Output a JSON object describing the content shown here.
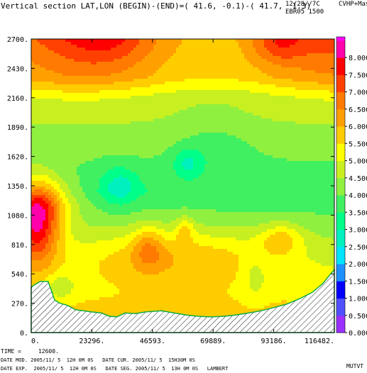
{
  "header": {
    "title": "Vertical section LAT,LON (BEGIN)-(END)=( 41.6, -0.1)-( 41.7,  1.3)",
    "top_right_1": "12/28//7C",
    "top_right_2": "EBR05 1500",
    "units": "CVHP+Mas"
  },
  "footer": {
    "time": "TIME =     12600.",
    "line1": "DATE MOD. 2005/11/ 5  12H 0M 0S   DATE CUR. 2005/11/ 5  15H30M 0S",
    "line2": "DATE EXP.  2005/11/ 5  12H 0M 0S   DATE SEG. 2005/11/ 5  13H 0M 0S   LAMBERT",
    "tag": "MUTVT"
  },
  "chart_data": {
    "type": "contour",
    "x_ticks": [
      "0.",
      "23296.",
      "46593.",
      "69889.",
      "93186.",
      "116482."
    ],
    "y_ticks": [
      "0.",
      "270.",
      "540.",
      "810.",
      "1080.",
      "1350.",
      "1620.",
      "1890.",
      "2160.",
      "2430.",
      "2700."
    ],
    "xlim": [
      0,
      116482
    ],
    "ylim": [
      0,
      2700
    ],
    "colorbar": {
      "labels": [
        "0.000",
        "0.500",
        "1.000",
        "1.500",
        "2.000",
        "2.500",
        "3.000",
        "3.500",
        "4.000",
        "4.500",
        "5.000",
        "5.500",
        "6.000",
        "6.500",
        "7.000",
        "7.500",
        "8.000"
      ],
      "colors": [
        "#8a2be2",
        "#4a55ff",
        "#0000ff",
        "#1e90ff",
        "#00c8ff",
        "#00e8c0",
        "#00ff80",
        "#30e060",
        "#80f040",
        "#b8f020",
        "#ffff00",
        "#ffd000",
        "#ffa500",
        "#ff7000",
        "#ff3000",
        "#ff0000",
        "#ff0066",
        "#ff00bb",
        "#ff00ff",
        "#e040e0"
      ]
    },
    "terrain": [
      [
        0,
        420
      ],
      [
        3500,
        470
      ],
      [
        6500,
        470
      ],
      [
        9000,
        300
      ],
      [
        11000,
        270
      ],
      [
        14000,
        250
      ],
      [
        17000,
        210
      ],
      [
        20000,
        200
      ],
      [
        23296,
        190
      ],
      [
        27000,
        180
      ],
      [
        30000,
        150
      ],
      [
        33000,
        145
      ],
      [
        36000,
        180
      ],
      [
        40000,
        175
      ],
      [
        44000,
        190
      ],
      [
        46593,
        195
      ],
      [
        50000,
        200
      ],
      [
        55000,
        180
      ],
      [
        60000,
        160
      ],
      [
        64000,
        150
      ],
      [
        68000,
        145
      ],
      [
        69889,
        145
      ],
      [
        74000,
        150
      ],
      [
        78000,
        160
      ],
      [
        82000,
        175
      ],
      [
        86000,
        190
      ],
      [
        90000,
        210
      ],
      [
        93186,
        230
      ],
      [
        98000,
        260
      ],
      [
        103000,
        310
      ],
      [
        108000,
        370
      ],
      [
        112000,
        450
      ],
      [
        116482,
        580
      ]
    ],
    "fields": {
      "background": 5.5,
      "bands": [
        {
          "x": [
            0,
            116482
          ],
          "y": [
            2300,
            2400
          ],
          "v": 5.5
        },
        {
          "x": [
            0,
            116482
          ],
          "y": [
            2100,
            2250
          ],
          "v": 4.5
        }
      ]
    }
  }
}
